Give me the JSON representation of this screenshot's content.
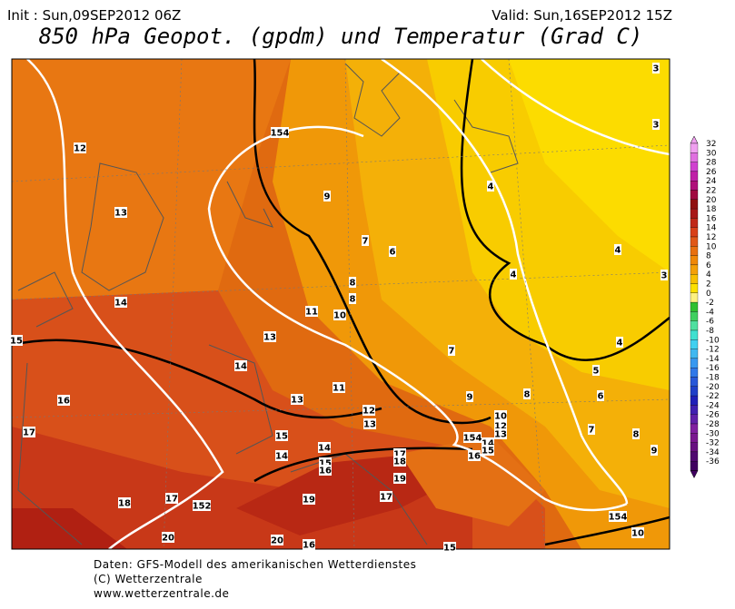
{
  "header": {
    "init": "Init : Sun,09SEP2012 06Z",
    "valid": "Valid: Sun,16SEP2012 15Z",
    "title": "850 hPa Geopot. (gpdm) und Temperatur (Grad C)"
  },
  "scale": [
    32,
    30,
    28,
    26,
    24,
    22,
    20,
    18,
    16,
    14,
    12,
    10,
    8,
    6,
    4,
    2,
    0,
    -2,
    -4,
    -6,
    -8,
    -10,
    -12,
    -14,
    -16,
    -18,
    -20,
    -22,
    -24,
    -26,
    -28,
    -30,
    -32,
    -34,
    -36
  ],
  "contour_labels": [
    12,
    13,
    14,
    15,
    16,
    17,
    18,
    17,
    152,
    20,
    20,
    16,
    15,
    154,
    9,
    7,
    6,
    8,
    8,
    11,
    10,
    13,
    14,
    13,
    11,
    12,
    13,
    15,
    14,
    14,
    15,
    16,
    17,
    18,
    19,
    17,
    19,
    154,
    16,
    14,
    15,
    10,
    12,
    13,
    9,
    7,
    8,
    4,
    4,
    4,
    4,
    5,
    6,
    7,
    8,
    9,
    3,
    3,
    3,
    154,
    10
  ],
  "footer": [
    "Daten: GFS-Modell des amerikanischen Wetterdienstes",
    "(C) Wetterzentrale",
    "www.wetterzentrale.de"
  ]
}
